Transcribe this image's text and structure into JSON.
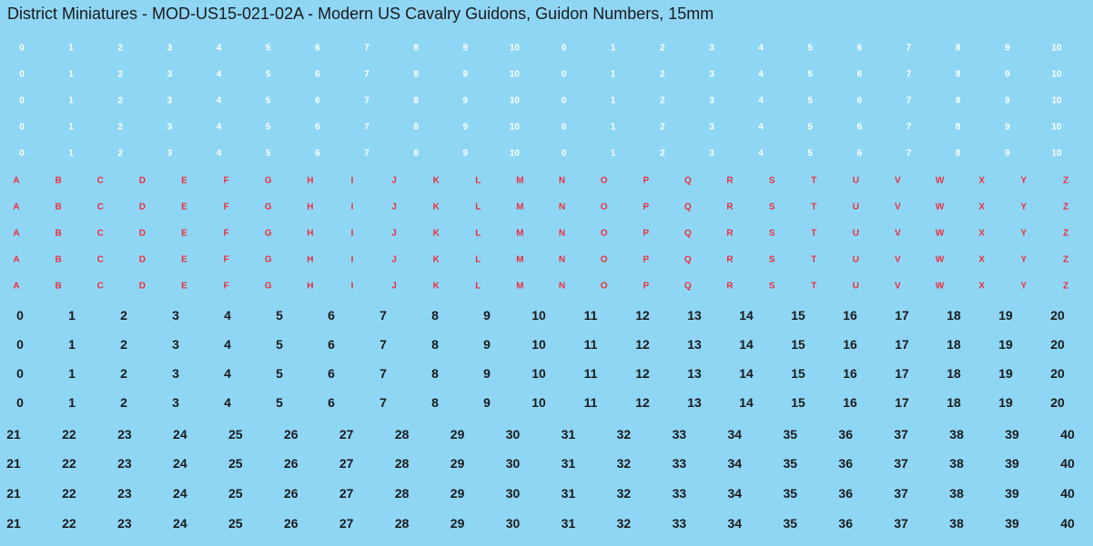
{
  "title": "District Miniatures - MOD-US15-021-02A - Modern US Cavalry Guidons, Guidon Numbers, 15mm",
  "colors": {
    "background": "#8fd6f5",
    "white_text": "#ffffff",
    "red_text": "#ee2e3a",
    "black_text": "#1a1a1a"
  },
  "white_numbers": [
    "0",
    "1",
    "2",
    "3",
    "4",
    "5",
    "6",
    "7",
    "8",
    "9",
    "10",
    "0",
    "1",
    "2",
    "3",
    "4",
    "5",
    "6",
    "7",
    "8",
    "9",
    "10"
  ],
  "red_letters": [
    "A",
    "B",
    "C",
    "D",
    "E",
    "F",
    "G",
    "H",
    "I",
    "J",
    "K",
    "L",
    "M",
    "N",
    "O",
    "P",
    "Q",
    "R",
    "S",
    "T",
    "U",
    "V",
    "W",
    "X",
    "Y",
    "Z"
  ],
  "black_numbers_a": [
    "0",
    "1",
    "2",
    "3",
    "4",
    "5",
    "6",
    "7",
    "8",
    "9",
    "10",
    "11",
    "12",
    "13",
    "14",
    "15",
    "16",
    "17",
    "18",
    "19",
    "20"
  ],
  "black_numbers_b": [
    "21",
    "22",
    "23",
    "24",
    "25",
    "26",
    "27",
    "28",
    "29",
    "30",
    "31",
    "32",
    "33",
    "34",
    "35",
    "36",
    "37",
    "38",
    "39",
    "40"
  ]
}
